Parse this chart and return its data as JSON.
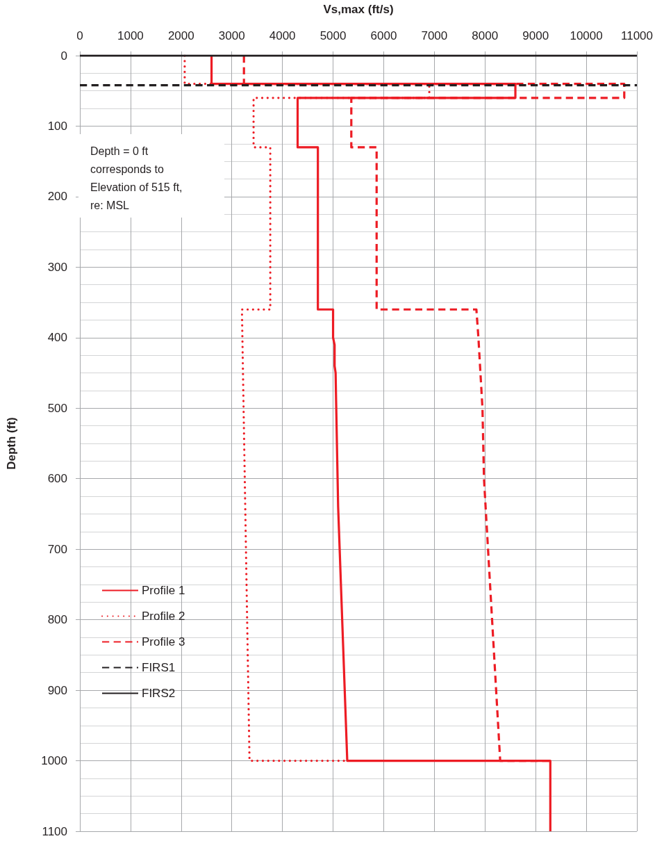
{
  "chart_data": {
    "type": "line",
    "xlabel": "Vs,max (ft/s)",
    "ylabel": "Depth (ft)",
    "annotations": [
      "Depth = 0 ft corresponds to Elevation of 515 ft, re: MSL"
    ],
    "xlim": [
      0,
      11000
    ],
    "xticks": [
      0,
      1000,
      2000,
      3000,
      4000,
      5000,
      6000,
      7000,
      8000,
      9000,
      10000,
      11000
    ],
    "ylim": [
      1100,
      0
    ],
    "yticks": [
      0,
      100,
      200,
      300,
      400,
      500,
      600,
      700,
      800,
      900,
      1000,
      1100
    ],
    "grid": true,
    "legend": "bottom left",
    "marker": "none",
    "series": [
      {
        "name": "Profile 1",
        "color": "#ed1c24",
        "line_style": "solid",
        "x": [
          2600,
          2600,
          8600,
          8600,
          4300,
          4300,
          4700,
          4700,
          5000,
          5000,
          5030,
          5030,
          5050,
          5060,
          5100,
          5280,
          9290,
          9290
        ],
        "values": [
          0,
          40,
          40,
          60,
          60,
          130,
          130,
          360,
          360,
          400,
          410,
          440,
          450,
          490,
          640,
          1000,
          1000,
          1100
        ]
      },
      {
        "name": "Profile 2",
        "color": "#ed1c24",
        "line_style": "dotted",
        "x": [
          2070,
          2070,
          6900,
          6900,
          3430,
          3430,
          3760,
          3760,
          3200,
          3350,
          5280
        ],
        "values": [
          0,
          40,
          40,
          60,
          60,
          130,
          130,
          360,
          360,
          1000,
          1000
        ]
      },
      {
        "name": "Profile 3",
        "color": "#ed1c24",
        "line_style": "dashed",
        "x": [
          3240,
          3240,
          10750,
          10750,
          5360,
          5360,
          5860,
          5860,
          7830,
          7870,
          7910,
          7950,
          7980,
          8300,
          9290
        ],
        "values": [
          0,
          40,
          40,
          60,
          60,
          130,
          130,
          360,
          360,
          400,
          450,
          500,
          600,
          1000,
          1000
        ]
      },
      {
        "name": "FIRS1",
        "color": "#231f20",
        "line_style": "dashed",
        "x": [
          0,
          11000
        ],
        "values": [
          42,
          42
        ]
      },
      {
        "name": "FIRS2",
        "color": "#231f20",
        "line_style": "solid",
        "x": [
          0,
          11000
        ],
        "values": [
          0,
          0
        ]
      }
    ]
  }
}
